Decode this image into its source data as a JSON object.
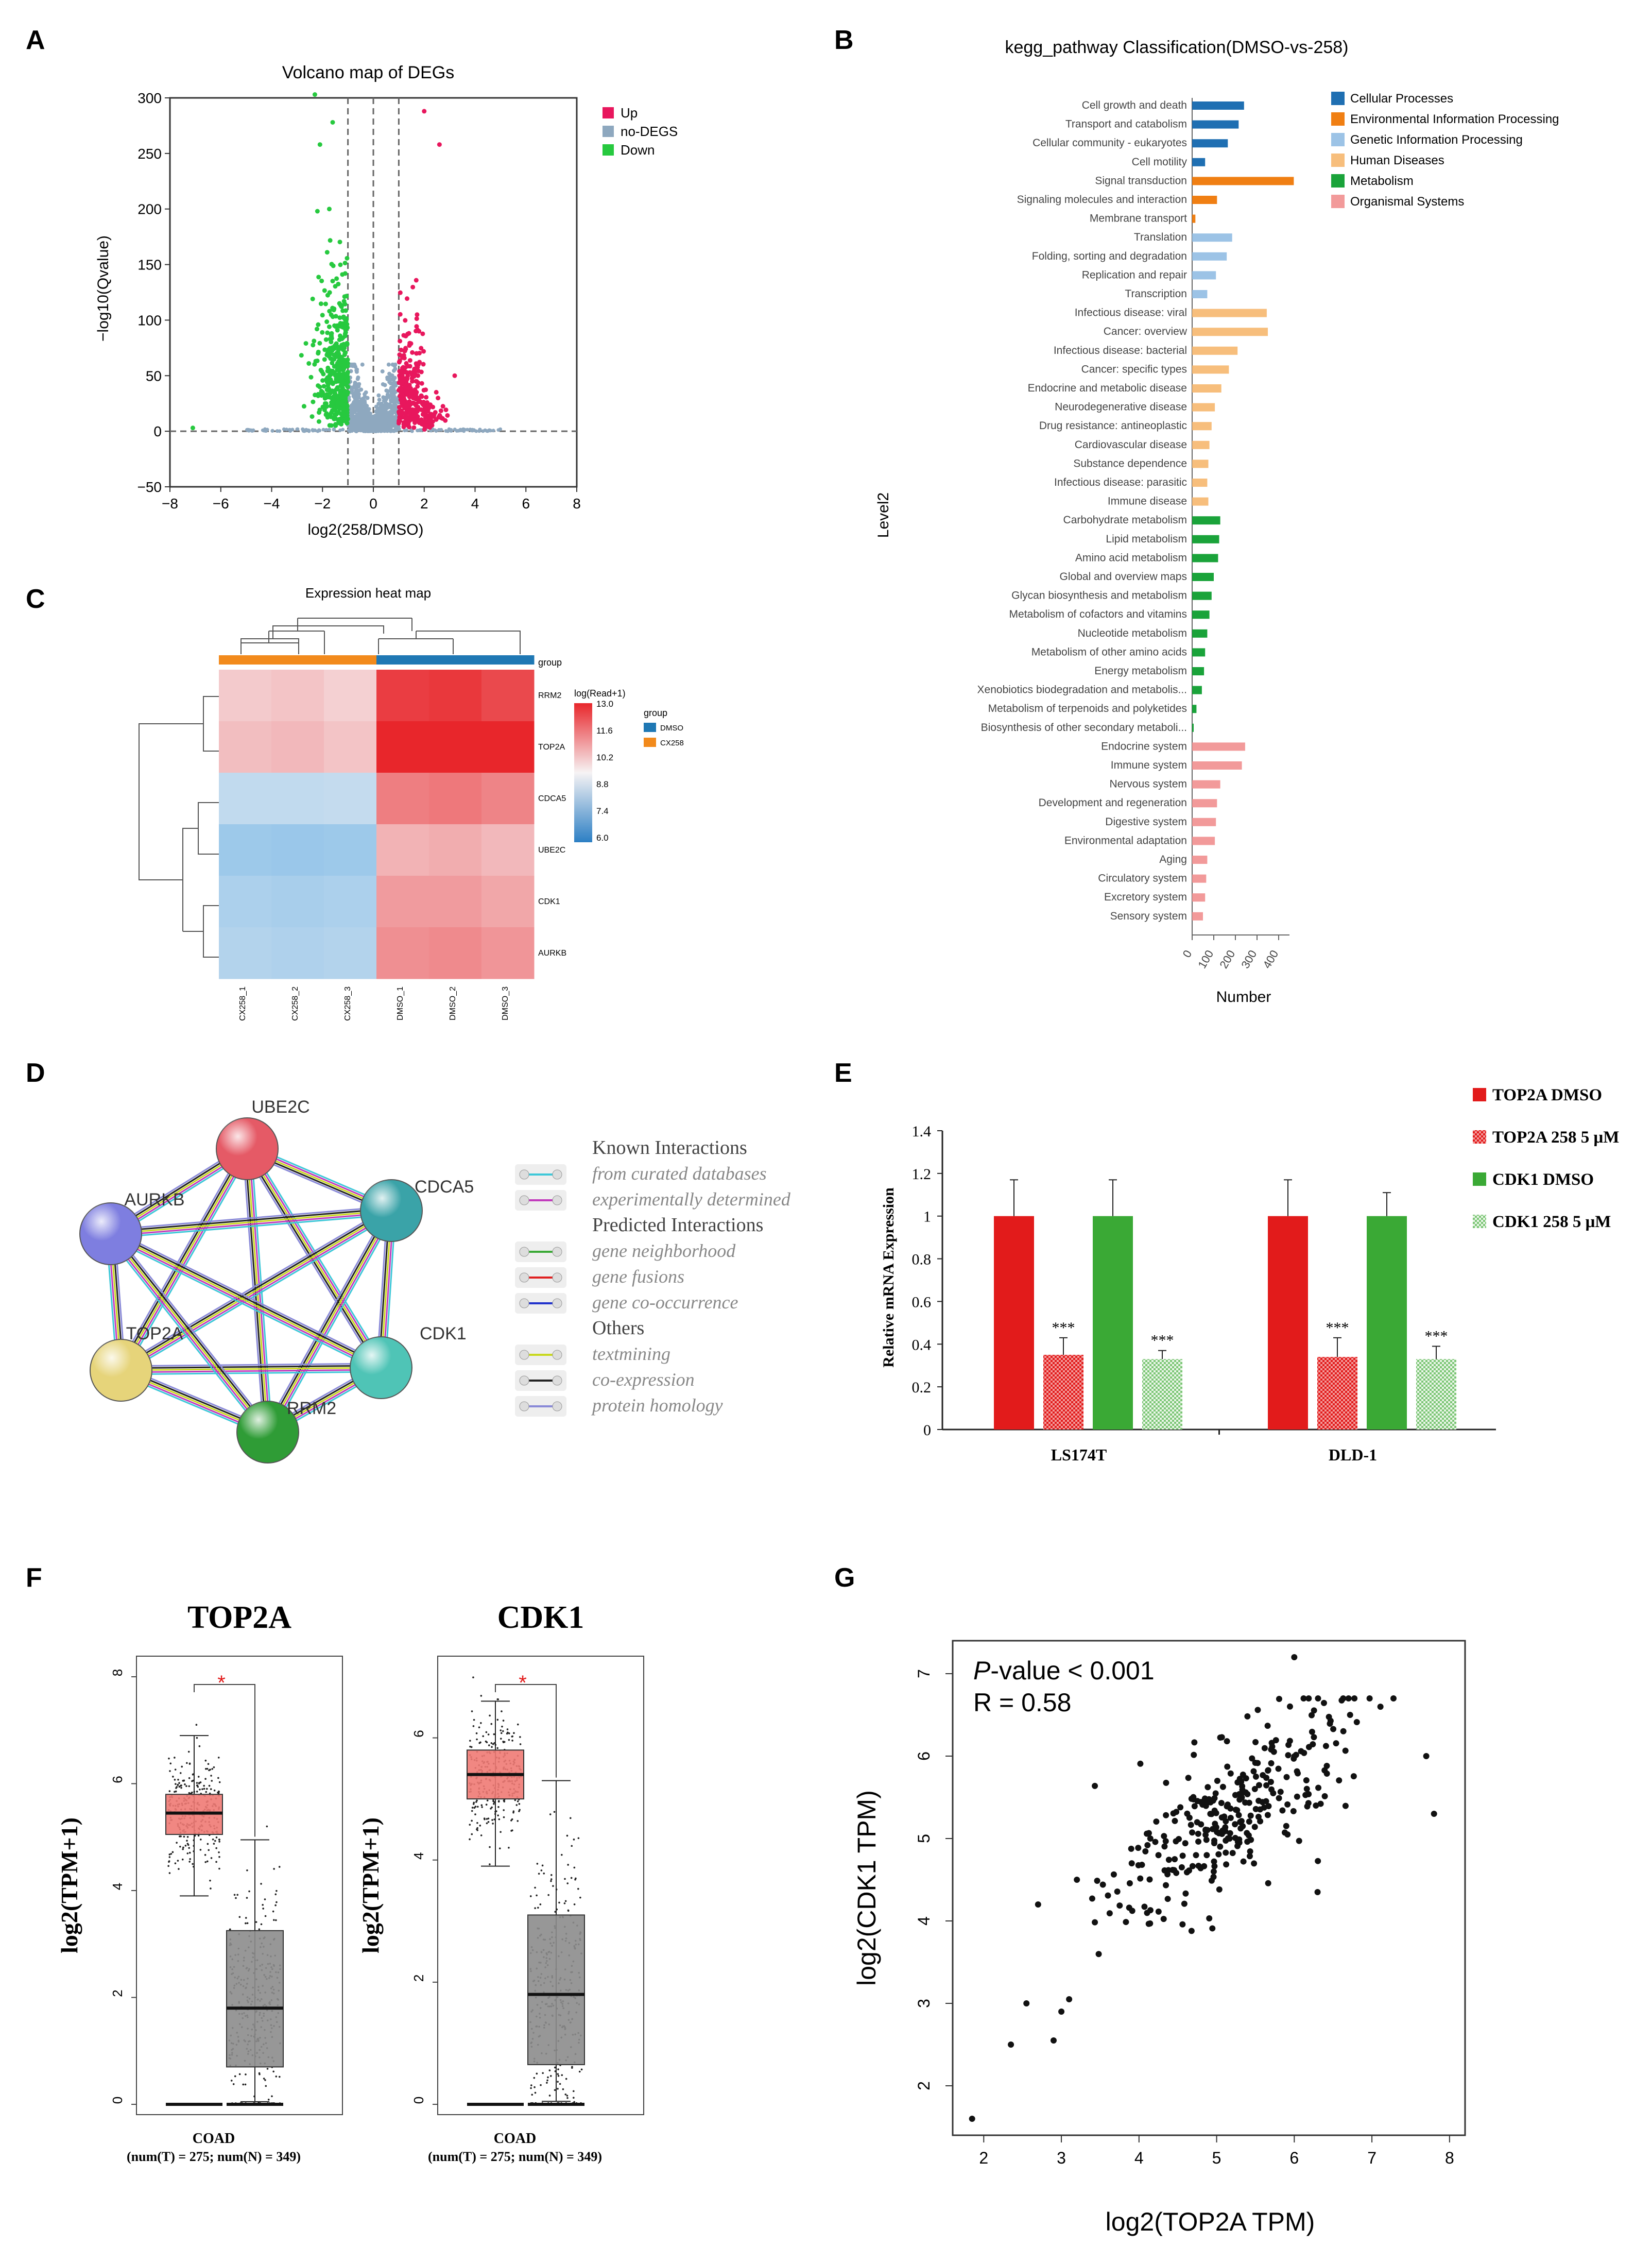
{
  "colors": {
    "up": "#e8175d",
    "nodeg": "#8ea8bf",
    "down": "#27c93f",
    "kegg": [
      "#1f6fb2",
      "#f07f13",
      "#9cc3e6",
      "#f7be7c",
      "#1aa33a",
      "#f29a9a"
    ],
    "e_top2a": "#e21b1b",
    "e_top2a_tr": "#e21b1b",
    "e_cdk1": "#3aa935",
    "e_cdk1_tr": "#9ed39a",
    "box_t": "#f07a74",
    "box_n": "#8c8c8c",
    "heat_high": "#e8262b",
    "heat_low": "#7ab8e6",
    "heat_mid": "#f6f3f4",
    "grp_dmso": "#1f78b4",
    "grp_cx": "#f28a1c"
  },
  "panel_letters": [
    "A",
    "B",
    "C",
    "D",
    "E",
    "F",
    "G"
  ],
  "chart_data": [
    {
      "id": "A",
      "type": "scatter",
      "title": "Volcano map of DEGs",
      "xlabel": "log2(258/DMSO)",
      "ylabel": "−log10(Qvalue)",
      "xlim": [
        -8,
        8
      ],
      "ylim": [
        -50,
        300
      ],
      "xticks": [
        "−8",
        "−6",
        "−4",
        "−2",
        "0",
        "2",
        "4",
        "6",
        "8"
      ],
      "yticks": [
        "−50",
        "0",
        "50",
        "100",
        "150",
        "200",
        "250",
        "300"
      ],
      "thresholds_x": [
        -1,
        0,
        1
      ],
      "legend": [
        "Up",
        "no-DEGS",
        "Down"
      ],
      "highlight_points": [
        {
          "x": -2.3,
          "y": 303
        },
        {
          "x": -2.1,
          "y": 258
        },
        {
          "x": -1.6,
          "y": 278
        },
        {
          "x": -2.2,
          "y": 198
        },
        {
          "x": 3.2,
          "y": 50
        },
        {
          "x": 2.0,
          "y": 288
        },
        {
          "x": 2.6,
          "y": 258
        },
        {
          "x": -7.1,
          "y": 3
        }
      ]
    },
    {
      "id": "B",
      "type": "bar",
      "title": "kegg_pathway Classification(DMSO-vs-258)",
      "ylabel": "Level2",
      "xlabel": "Number",
      "xlim": [
        0,
        450
      ],
      "xticks": [
        "0",
        "100",
        "200",
        "300",
        "400"
      ],
      "legend": [
        "Cellular Processes",
        "Environmental Information Processing",
        "Genetic Information Processing",
        "Human Diseases",
        "Metabolism",
        "Organismal Systems"
      ],
      "categories": [
        "Cell growth and death",
        "Transport and catabolism",
        "Cellular community - eukaryotes",
        "Cell motility",
        "Signal transduction",
        "Signaling molecules and interaction",
        "Membrane transport",
        "Translation",
        "Folding, sorting and degradation",
        "Replication and repair",
        "Transcription",
        "Infectious disease: viral",
        "Cancer: overview",
        "Infectious disease: bacterial",
        "Cancer: specific types",
        "Endocrine and metabolic disease",
        "Neurodegenerative disease",
        "Drug resistance: antineoplastic",
        "Cardiovascular disease",
        "Substance dependence",
        "Infectious disease: parasitic",
        "Immune disease",
        "Carbohydrate metabolism",
        "Lipid metabolism",
        "Amino acid metabolism",
        "Global and overview maps",
        "Glycan biosynthesis and metabolism",
        "Metabolism of cofactors and vitamins",
        "Nucleotide metabolism",
        "Metabolism of other amino acids",
        "Energy metabolism",
        "Xenobiotics biodegradation and metabolis...",
        "Metabolism of terpenoids and polyketides",
        "Biosynthesis of other secondary metaboli...",
        "Endocrine system",
        "Immune system",
        "Nervous system",
        "Development and regeneration",
        "Digestive system",
        "Environmental adaptation",
        "Aging",
        "Circulatory system",
        "Excretory system",
        "Sensory system"
      ],
      "groups": [
        0,
        0,
        0,
        0,
        1,
        1,
        1,
        2,
        2,
        2,
        2,
        3,
        3,
        3,
        3,
        3,
        3,
        3,
        3,
        3,
        3,
        3,
        4,
        4,
        4,
        4,
        4,
        4,
        4,
        4,
        4,
        4,
        4,
        4,
        5,
        5,
        5,
        5,
        5,
        5,
        5,
        5,
        5,
        5
      ],
      "values": [
        240,
        215,
        165,
        60,
        470,
        115,
        15,
        185,
        160,
        110,
        70,
        345,
        350,
        210,
        170,
        135,
        105,
        90,
        80,
        75,
        70,
        75,
        130,
        125,
        120,
        100,
        90,
        80,
        70,
        60,
        55,
        45,
        20,
        5,
        245,
        230,
        130,
        115,
        110,
        105,
        70,
        65,
        60,
        50
      ]
    },
    {
      "id": "C",
      "type": "heatmap",
      "title": "Expression heat map",
      "rows": [
        "RRM2",
        "TOP2A",
        "CDCA5",
        "UBE2C",
        "CDK1",
        "AURKB"
      ],
      "cols": [
        "CX258_1",
        "CX258_2",
        "CX258_3",
        "DMSO_1",
        "DMSO_2",
        "DMSO_3"
      ],
      "values": [
        [
          10.2,
          10.3,
          10.1,
          12.6,
          12.7,
          12.4
        ],
        [
          10.4,
          10.5,
          10.3,
          13.0,
          13.0,
          13.0
        ],
        [
          8.0,
          8.0,
          8.1,
          11.5,
          11.6,
          11.4
        ],
        [
          7.0,
          6.9,
          7.0,
          10.6,
          10.7,
          10.5
        ],
        [
          7.4,
          7.3,
          7.4,
          11.0,
          11.0,
          10.8
        ],
        [
          7.6,
          7.5,
          7.6,
          11.2,
          11.3,
          11.1
        ]
      ],
      "scale_title": "log(Read+1)",
      "scale_ticks": [
        "13.0",
        "11.6",
        "10.2",
        "8.8",
        "7.4",
        "6.0"
      ],
      "group_label": "group",
      "group_legend": [
        "DMSO",
        "CX258"
      ]
    },
    {
      "id": "E",
      "type": "bar",
      "ylabel": "Relative  mRNA Expression",
      "ylim": [
        0,
        1.4
      ],
      "yticks": [
        "0",
        "0.2",
        "0.4",
        "0.6",
        "0.8",
        "1",
        "1.2",
        "1.4"
      ],
      "categories": [
        "LS174T",
        "DLD-1"
      ],
      "series": [
        {
          "name": "TOP2A DMSO",
          "values": [
            1.0,
            1.0
          ],
          "err": [
            0.17,
            0.17
          ],
          "sig": [
            "",
            ""
          ]
        },
        {
          "name": "TOP2A 258 5 μM",
          "values": [
            0.35,
            0.34
          ],
          "err": [
            0.08,
            0.09
          ],
          "sig": [
            "***",
            "***"
          ]
        },
        {
          "name": "CDK1 DMSO",
          "values": [
            1.0,
            1.0
          ],
          "err": [
            0.17,
            0.11
          ],
          "sig": [
            "",
            ""
          ]
        },
        {
          "name": "CDK1 258 5 μM",
          "values": [
            0.33,
            0.33
          ],
          "err": [
            0.04,
            0.06
          ],
          "sig": [
            "***",
            "***"
          ]
        }
      ]
    },
    {
      "id": "F",
      "type": "box",
      "panels": [
        {
          "title": "TOP2A",
          "ylim": [
            0,
            8
          ],
          "yticks": [
            "0",
            "2",
            "4",
            "6",
            "8"
          ],
          "tumor": {
            "q1": 5.05,
            "median": 5.45,
            "q3": 5.8,
            "wlo": 3.9,
            "whi": 6.9
          },
          "normal": {
            "q1": 0.7,
            "median": 1.8,
            "q3": 3.25,
            "wlo": 0.05,
            "whi": 4.95
          }
        },
        {
          "title": "CDK1",
          "ylim": [
            0,
            7
          ],
          "yticks": [
            "0",
            "2",
            "4",
            "6"
          ],
          "tumor": {
            "q1": 5.0,
            "median": 5.4,
            "q3": 5.8,
            "wlo": 3.9,
            "whi": 6.6
          },
          "normal": {
            "q1": 0.65,
            "median": 1.8,
            "q3": 3.1,
            "wlo": 0.05,
            "whi": 5.3
          }
        }
      ],
      "ylabel": "log2(TPM+1)",
      "xlabel": "COAD",
      "subtitle": "(num(T) = 275; num(N) = 349)",
      "sig": "*"
    },
    {
      "id": "G",
      "type": "scatter",
      "xlabel": "log2(TOP2A TPM)",
      "ylabel": "log2(CDK1 TPM)",
      "xlim": [
        1.6,
        8.2
      ],
      "ylim": [
        1.4,
        7.4
      ],
      "xticks": [
        "2",
        "3",
        "4",
        "5",
        "6",
        "7",
        "8"
      ],
      "yticks": [
        "2",
        "3",
        "4",
        "5",
        "6",
        "7"
      ],
      "annotation_p": "-value < 0.001",
      "annotation_p_italic": "P",
      "annotation_r": "R = 0.58",
      "outliers": [
        {
          "x": 1.85,
          "y": 1.6
        },
        {
          "x": 2.35,
          "y": 2.5
        },
        {
          "x": 2.55,
          "y": 3.0
        },
        {
          "x": 2.7,
          "y": 4.2
        },
        {
          "x": 2.9,
          "y": 2.55
        },
        {
          "x": 3.2,
          "y": 4.5
        },
        {
          "x": 6.0,
          "y": 7.2
        },
        {
          "x": 7.7,
          "y": 6.0
        },
        {
          "x": 7.8,
          "y": 5.3
        },
        {
          "x": 6.3,
          "y": 4.35
        },
        {
          "x": 3.0,
          "y": 2.9
        },
        {
          "x": 3.1,
          "y": 3.05
        }
      ]
    }
  ],
  "network": {
    "nodes": [
      {
        "label": "UBE2C",
        "color": "#e55a66"
      },
      {
        "label": "CDCA5",
        "color": "#3aa3a8"
      },
      {
        "label": "CDK1",
        "color": "#4fc4b6"
      },
      {
        "label": "RRM2",
        "color": "#2f9c36"
      },
      {
        "label": "TOP2A",
        "color": "#e6d47a"
      },
      {
        "label": "AURKB",
        "color": "#7e7ee0"
      }
    ],
    "legend_sections": [
      {
        "title": "Known Interactions",
        "items": [
          {
            "label": "from curated databases",
            "colors": [
              "#3ec8d8"
            ]
          },
          {
            "label": "experimentally determined",
            "colors": [
              "#c23bbd"
            ]
          }
        ]
      },
      {
        "title": "Predicted Interactions",
        "items": [
          {
            "label": "gene neighborhood",
            "colors": [
              "#3aa935"
            ]
          },
          {
            "label": "gene fusions",
            "colors": [
              "#e02020"
            ]
          },
          {
            "label": "gene co-occurrence",
            "colors": [
              "#2233cc"
            ]
          }
        ]
      },
      {
        "title": "Others",
        "items": [
          {
            "label": "textmining",
            "colors": [
              "#c8d81e"
            ]
          },
          {
            "label": "co-expression",
            "colors": [
              "#222222"
            ]
          },
          {
            "label": "protein homology",
            "colors": [
              "#8a8ad8"
            ]
          }
        ]
      }
    ]
  }
}
